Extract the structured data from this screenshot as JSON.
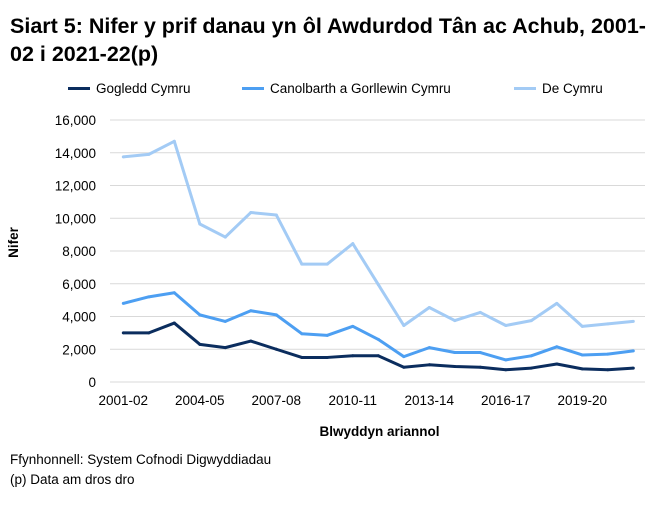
{
  "chart_data": {
    "type": "line",
    "title": "Siart 5: Nifer y prif danau yn ôl Awdurdod Tân ac Achub, 2001-02 i 2021-22(p)",
    "xlabel": "Blwyddyn ariannol",
    "ylabel": "Nifer",
    "ylim": [
      0,
      16000
    ],
    "yticks": [
      "0",
      "2,000",
      "4,000",
      "6,000",
      "8,000",
      "10,000",
      "12,000",
      "14,000",
      "16,000"
    ],
    "x": [
      "2001-02",
      "2002-03",
      "2003-04",
      "2004-05",
      "2005-06",
      "2006-07",
      "2007-08",
      "2008-09",
      "2009-10",
      "2010-11",
      "2011-12",
      "2012-13",
      "2013-14",
      "2014-15",
      "2015-16",
      "2016-17",
      "2017-18",
      "2018-19",
      "2019-20",
      "2020-21",
      "2021-22"
    ],
    "xtick_labels": [
      "2001-02",
      "2004-05",
      "2007-08",
      "2010-11",
      "2013-14",
      "2016-17",
      "2019-20"
    ],
    "grid": "horizontal",
    "legend": "top",
    "series": [
      {
        "name": "Gogledd Cymru",
        "color": "#0b2d5e",
        "values": [
          3000,
          3000,
          3600,
          2300,
          2100,
          2500,
          2000,
          1500,
          1500,
          1600,
          1600,
          900,
          1050,
          950,
          900,
          750,
          850,
          1100,
          800,
          750,
          850
        ]
      },
      {
        "name": "Canolbarth a Gorllewin Cymru",
        "color": "#4d9ff2",
        "values": [
          4800,
          5200,
          5450,
          4100,
          3700,
          4350,
          4100,
          2950,
          2850,
          3400,
          2600,
          1550,
          2100,
          1800,
          1800,
          1350,
          1600,
          2150,
          1650,
          1700,
          1900
        ]
      },
      {
        "name": "De Cymru",
        "color": "#a3cbf5",
        "values": [
          13750,
          13900,
          14700,
          9650,
          8850,
          10350,
          10200,
          7200,
          7200,
          8450,
          5950,
          3450,
          4550,
          3750,
          4250,
          3450,
          3750,
          4800,
          3400,
          3550,
          3700
        ]
      }
    ]
  },
  "notes": {
    "source": "Ffynhonnell: System Cofnodi Digwyddiadau",
    "provisional": "(p) Data am dros dro"
  }
}
